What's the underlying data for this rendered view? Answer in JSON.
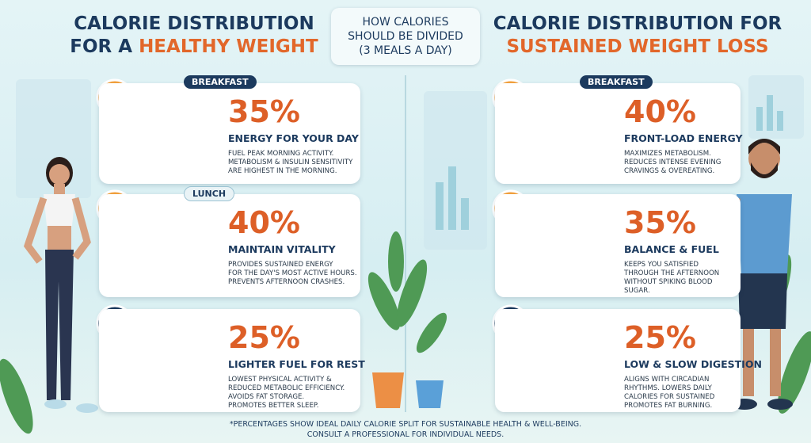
{
  "left": {
    "title_line1": "CALORIE DISTRIBUTION",
    "title_prefix": "FOR A",
    "title_highlight": "HEALTHY WEIGHT",
    "meals": [
      {
        "label": "BREAKFAST",
        "percent": "35%",
        "heading": "ENERGY FOR YOUR DAY",
        "description": [
          "FUEL PEAK MORNING ACTIVITY.",
          "METABOLISM & INSULIN SENSITIVITY",
          "ARE HIGHEST IN THE MORNING."
        ]
      },
      {
        "label": "LUNCH",
        "percent": "40%",
        "heading": "MAINTAIN VITALITY",
        "description": [
          "PROVIDES SUSTAINED ENERGY",
          "FOR THE DAY'S MOST ACTIVE HOURS.",
          "PREVENTS AFTERNOON CRASHES."
        ]
      },
      {
        "percent": "25%",
        "heading": "LIGHTER FUEL FOR REST",
        "description": [
          "LOWEST PHYSICAL ACTIVITY &",
          "REDUCED METABOLIC EFFICIENCY.",
          "AVOIDS FAT STORAGE.",
          "PROMOTES BETTER SLEEP."
        ]
      }
    ]
  },
  "center": {
    "title": [
      "HOW CALORIES",
      "SHOULD BE DIVIDED",
      "(3 MEALS A DAY)"
    ]
  },
  "right": {
    "title_line1": "CALORIE DISTRIBUTION FOR",
    "title_highlight": "SUSTAINED WEIGHT LOSS",
    "meals": [
      {
        "label": "BREAKFAST",
        "percent": "40%",
        "heading": "FRONT-LOAD ENERGY",
        "description": [
          "MAXIMIZES METABOLISM.",
          "REDUCES INTENSE EVENING",
          "CRAVINGS & OVEREATING."
        ]
      },
      {
        "percent": "35%",
        "heading": "BALANCE & FUEL",
        "description": [
          "KEEPS YOU SATISFIED",
          "THROUGH THE AFTERNOON",
          "WITHOUT SPIKING BLOOD",
          "SUGAR."
        ]
      },
      {
        "percent": "25%",
        "heading": "LOW & SLOW DIGESTION",
        "description": [
          "ALIGNS WITH CIRCADIAN",
          "RHYTHMS. LOWERS DAILY",
          "CALORIES FOR SUSTAINED",
          "PROMOTES FAT BURNING."
        ]
      }
    ]
  },
  "footer": [
    "*PERCENTAGES SHOW IDEAL DAILY CALORIE SPLIT FOR SUSTAINABLE HEALTH & WELL-BEING.",
    "CONSULT A PROFESSIONAL FOR INDIVIDUAL NEEDS."
  ]
}
